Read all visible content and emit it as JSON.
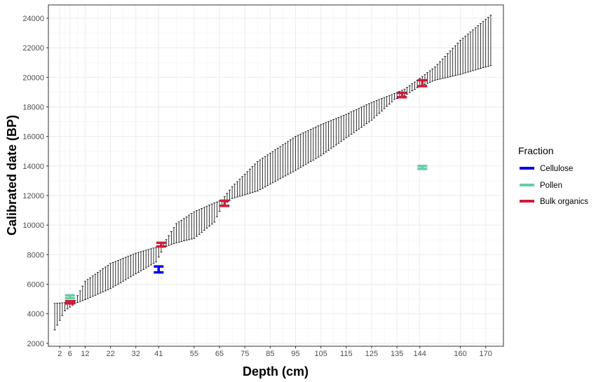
{
  "chart_data": {
    "type": "errorbar",
    "xlabel": "Depth (cm)",
    "ylabel": "Calibrated date (BP)",
    "xlim": [
      -2.5,
      177
    ],
    "ylim": [
      1800,
      24900
    ],
    "x_ticks": [
      2,
      6,
      12,
      22,
      32,
      41,
      55,
      65,
      75,
      85,
      95,
      105,
      115,
      125,
      135,
      144,
      160,
      170
    ],
    "y_ticks": [
      2000,
      4000,
      6000,
      8000,
      10000,
      12000,
      14000,
      16000,
      18000,
      20000,
      22000,
      24000
    ],
    "grid": true,
    "legend": {
      "title": "Fraction",
      "position": "right",
      "items": [
        {
          "label": "Cellulose",
          "color": "#0000ee"
        },
        {
          "label": "Pollen",
          "color": "#66cdaa"
        },
        {
          "label": "Bulk organics",
          "color": "#cd1d3a"
        }
      ]
    },
    "model": {
      "description_source": "age-depth model ranges every 1 cm",
      "knots": [
        {
          "depth": 0,
          "low": 2900,
          "high": 4700
        },
        {
          "depth": 4,
          "low": 4200,
          "high": 4750
        },
        {
          "depth": 8,
          "low": 4700,
          "high": 4900
        },
        {
          "depth": 12,
          "low": 4950,
          "high": 6200
        },
        {
          "depth": 22,
          "low": 5700,
          "high": 7400
        },
        {
          "depth": 32,
          "low": 6700,
          "high": 8100
        },
        {
          "depth": 40,
          "low": 7500,
          "high": 8500
        },
        {
          "depth": 43,
          "low": 8500,
          "high": 8750
        },
        {
          "depth": 48,
          "low": 8800,
          "high": 10100
        },
        {
          "depth": 55,
          "low": 9100,
          "high": 10900
        },
        {
          "depth": 63,
          "low": 10200,
          "high": 11500
        },
        {
          "depth": 66,
          "low": 11300,
          "high": 11700
        },
        {
          "depth": 70,
          "low": 11800,
          "high": 12600
        },
        {
          "depth": 80,
          "low": 12300,
          "high": 14300
        },
        {
          "depth": 95,
          "low": 13700,
          "high": 16000
        },
        {
          "depth": 105,
          "low": 14700,
          "high": 16800
        },
        {
          "depth": 115,
          "low": 15900,
          "high": 17500
        },
        {
          "depth": 125,
          "low": 17100,
          "high": 18300
        },
        {
          "depth": 134,
          "low": 18500,
          "high": 18900
        },
        {
          "depth": 138,
          "low": 18750,
          "high": 19200
        },
        {
          "depth": 143,
          "low": 19300,
          "high": 19800
        },
        {
          "depth": 150,
          "low": 19800,
          "high": 20700
        },
        {
          "depth": 160,
          "low": 20200,
          "high": 22500
        },
        {
          "depth": 172,
          "low": 20800,
          "high": 24200
        }
      ]
    },
    "dates": [
      {
        "fraction": "Cellulose",
        "depth": 41,
        "low": 6800,
        "high": 7200,
        "color": "#0000ee"
      },
      {
        "fraction": "Pollen",
        "depth": 6,
        "low": 5050,
        "high": 5250,
        "color": "#66cdaa"
      },
      {
        "fraction": "Pollen",
        "depth": 145,
        "low": 13800,
        "high": 14000,
        "color": "#66cdaa"
      },
      {
        "fraction": "Bulk organics",
        "depth": 6,
        "low": 4700,
        "high": 4850,
        "color": "#cd1d3a"
      },
      {
        "fraction": "Bulk organics",
        "depth": 42,
        "low": 8550,
        "high": 8800,
        "color": "#cd1d3a"
      },
      {
        "fraction": "Bulk organics",
        "depth": 67,
        "low": 11300,
        "high": 11650,
        "color": "#cd1d3a"
      },
      {
        "fraction": "Bulk organics",
        "depth": 137,
        "low": 18650,
        "high": 18950,
        "color": "#cd1d3a"
      },
      {
        "fraction": "Bulk organics",
        "depth": 145,
        "low": 19400,
        "high": 19800,
        "color": "#cd1d3a"
      }
    ]
  }
}
